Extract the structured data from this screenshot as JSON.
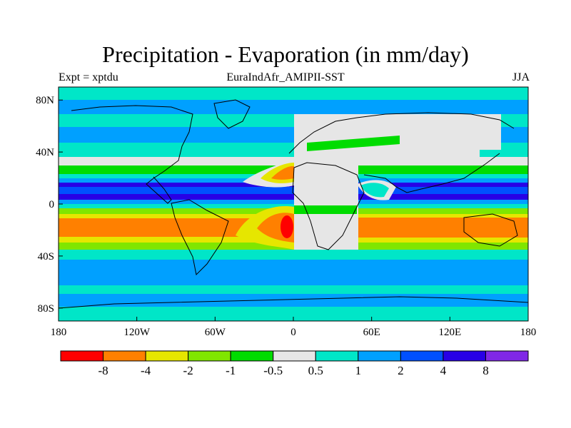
{
  "title": "Precipitation - Evaporation (in mm/day)",
  "left_label": "Expt = xptdu",
  "center_label": "EuraIndAfr_AMIPII-SST",
  "right_label": "JJA",
  "lat_ticks": [
    {
      "label": "80N",
      "lat": 80
    },
    {
      "label": "40N",
      "lat": 40
    },
    {
      "label": "0",
      "lat": 0
    },
    {
      "label": "40S",
      "lat": -40
    },
    {
      "label": "80S",
      "lat": -80
    }
  ],
  "lon_ticks": [
    {
      "label": "180",
      "lon": -180
    },
    {
      "label": "120W",
      "lon": -120
    },
    {
      "label": "60W",
      "lon": -60
    },
    {
      "label": "0",
      "lon": 0
    },
    {
      "label": "60E",
      "lon": 60
    },
    {
      "label": "120E",
      "lon": 120
    },
    {
      "label": "180",
      "lon": 180
    }
  ],
  "extent": {
    "lon": [
      -180,
      180
    ],
    "lat": [
      -90,
      90
    ]
  },
  "colorbar": {
    "colors": [
      "#ff0000",
      "#ff8000",
      "#e6e600",
      "#80e600",
      "#00dc00",
      "#e6e6e6",
      "#00e6c8",
      "#00a0ff",
      "#0050ff",
      "#2800e6",
      "#8028e6"
    ],
    "labels": [
      "-8",
      "-4",
      "-2",
      "-1",
      "-0.5",
      "0.5",
      "1",
      "2",
      "4",
      "8"
    ]
  }
}
